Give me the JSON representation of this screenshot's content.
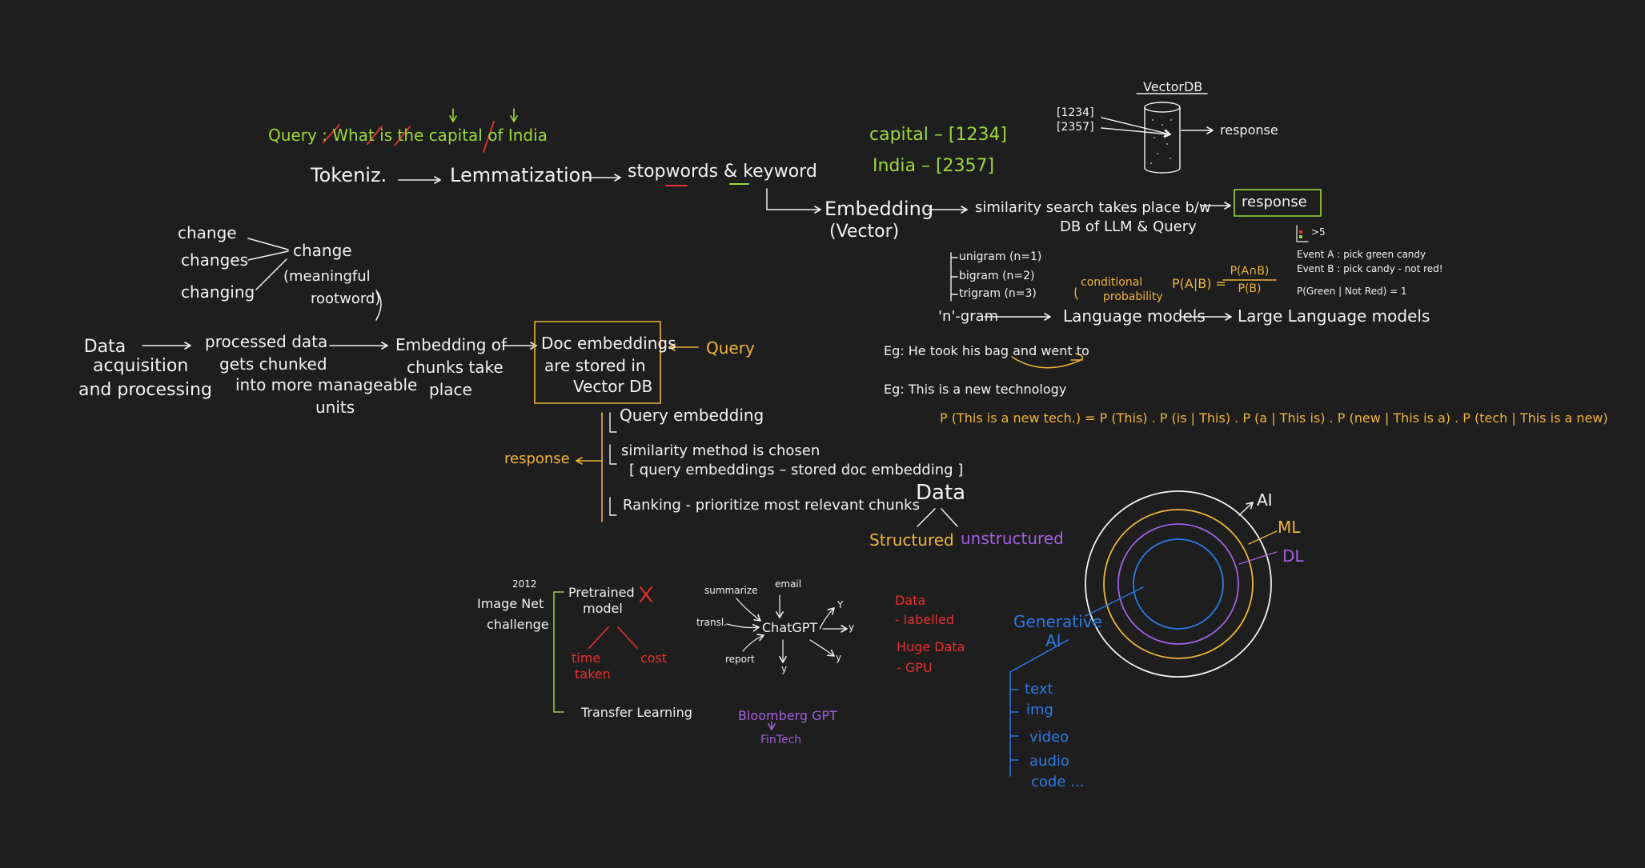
{
  "colors": {
    "background": "#1e1e1e",
    "white": "#f2f2f2",
    "green": "#9bd93a",
    "orange": "#f0b43a",
    "red": "#e8312f",
    "purple": "#a25fe0",
    "blue": "#2c7be5"
  },
  "query": {
    "prefix": "Query : ",
    "what": "What",
    "is": "is",
    "the": "the",
    "capital": "capital",
    "of": "of",
    "india": "India"
  },
  "pipeline": {
    "tokenize": "Tokeniz.",
    "lemmatization": "Lemmatization",
    "stopwords": "stopwords & keyword",
    "embedding": "Embedding",
    "vector": "(Vector)",
    "similarity": "similarity search takes place b/w",
    "similarity_db": "DB of LLM & Query",
    "response": "response"
  },
  "vectordb": {
    "title": "VectorDB",
    "vec1": "[1234]",
    "vec2": "[2357]",
    "response": "response"
  },
  "keywords": {
    "capital": "capital – [1234]",
    "india": "India – [2357]"
  },
  "lemma": {
    "change": "change",
    "changes": "changes",
    "changing": "changing",
    "result": "change",
    "meaningful": "(meaningful",
    "rootword": "rootword)"
  },
  "rag": {
    "data": "Data",
    "acquisition": "acquisition",
    "processing": "and processing",
    "processed": "processed data",
    "chunked": "gets chunked",
    "manageable": "into more manageable",
    "units": "units",
    "embedding_of": "Embedding of",
    "chunks": "chunks take",
    "place": "place",
    "doc_embeddings": "Doc embeddings",
    "stored": "are stored in",
    "vectordb": "Vector DB",
    "query": "Query",
    "query_embedding": "Query embedding",
    "similarity_method": "similarity method is chosen",
    "formula": "[ query embeddings – stored doc embedding ]",
    "ranking": "Ranking - prioritize most relevant chunks",
    "response": "response"
  },
  "ngram": {
    "unigram": "unigram (n=1)",
    "bigram": "bigram (n=2)",
    "trigram": "trigram (n=3)",
    "ngram": "'n'-gram",
    "language_models": "Language models",
    "llm": "Large Language models",
    "conditional": "conditional",
    "probability": "probability",
    "pab": "P(A|B) =",
    "num": "P(A∩B)",
    "den": "P(B)"
  },
  "candy": {
    "eventA": "Event A : pick green candy",
    "eventB": "Event B : pick candy - not red!",
    "prob": "P(Green | Not Red) = 1",
    "gt5": ">5"
  },
  "examples": {
    "eg1": "Eg:  He took his bag and went to",
    "eg2": "Eg:  This is a new technology",
    "pfirst": "P (This is a new tech.) = P (This) . P (is | This) . P (a | This is) . P (new | This is a) . P (tech | This is a new)"
  },
  "data_tree": {
    "data": "Data",
    "structured": "Structured",
    "unstructured": "unstructured"
  },
  "circles": {
    "ai": "AI",
    "ml": "ML",
    "dl": "DL",
    "generative": "Generative",
    "gen_ai": "AI"
  },
  "gen_list": [
    "text",
    "img",
    "video",
    "audio",
    "code ..."
  ],
  "imagenet": {
    "year": "2012",
    "image_net": "Image Net",
    "challenge": "challenge",
    "pretrained": "Pretrained",
    "model": "model",
    "time": "time",
    "taken": "taken",
    "cost": "cost",
    "transfer": "Transfer Learning"
  },
  "chatgpt": {
    "center": "ChatGPT",
    "summarize": "summarize",
    "email": "email",
    "transl": "transl.",
    "report": "report",
    "y1": "Y",
    "y2": "y",
    "y3": "y",
    "y4": "y"
  },
  "requirements": {
    "data": "Data",
    "labelled": "- labelled",
    "huge": "Huge Data",
    "gpu": "- GPU"
  },
  "bloomberg": {
    "name": "Bloomberg GPT",
    "fintech": "FinTech"
  }
}
